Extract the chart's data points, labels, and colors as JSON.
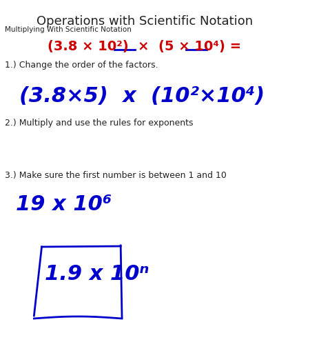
{
  "title": "Operations with Scientific Notation",
  "subtitle": "Multiplying With Scientific Notation",
  "problem_line": "(3.8 × 10²)  ×  (5 × 10⁴) =",
  "step1_label": "1.) Change the order of the factors.",
  "step1_handwritten": "(3.8×5)  x  (10²×10⁴)",
  "step2_label": "2.) Multiply and use the rules for exponents",
  "step3_label": "3.) Make sure the first number is between 1 and 10",
  "step3_handwritten": "19 x 10⁶",
  "final_handwritten": "1.9 x 10ⁿ",
  "bg_color": "#ffffff",
  "title_color": "#222222",
  "subtitle_color": "#222222",
  "problem_color": "#cc0000",
  "handwritten_color": "#0000cc",
  "underline_color": "#0000cc",
  "step_label_color": "#222222"
}
